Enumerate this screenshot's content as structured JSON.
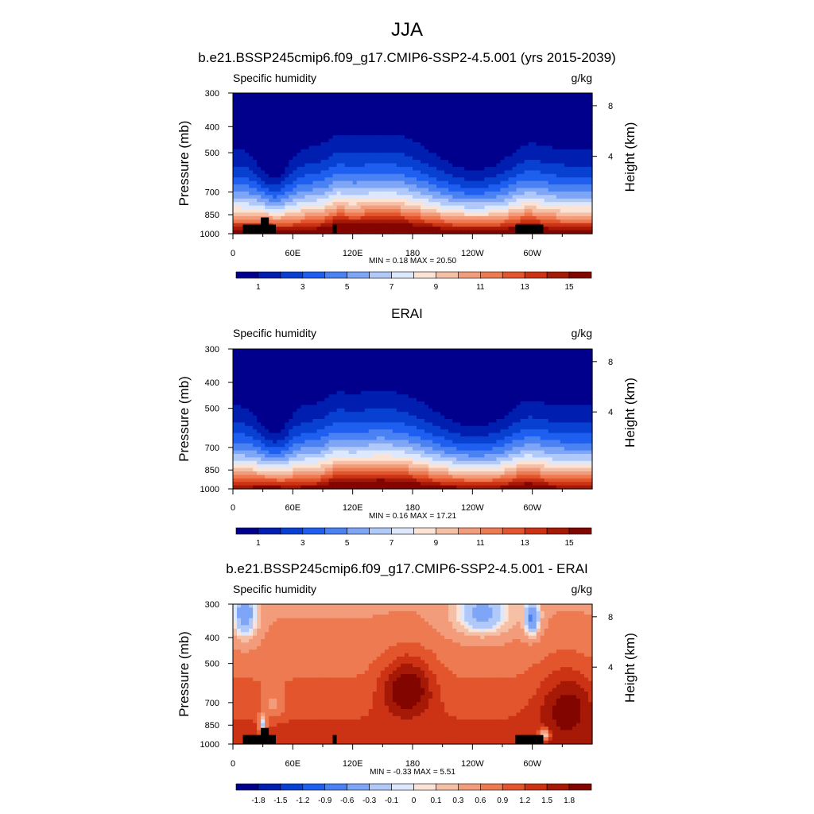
{
  "figure": {
    "season": "JJA"
  },
  "palettes": {
    "full": [
      "#00008c",
      "#001eaf",
      "#0841d2",
      "#1f5ff0",
      "#4a82f3",
      "#7ea5f6",
      "#b1c9f9",
      "#dde8fc",
      "#fbe3d6",
      "#f6c0a6",
      "#f39c7b",
      "#ee7a52",
      "#e3552d",
      "#cc3314",
      "#a61907",
      "#830500"
    ],
    "diff": [
      "#00008c",
      "#001eaf",
      "#0841d2",
      "#1f5ff0",
      "#4a82f3",
      "#7ea5f6",
      "#b1c9f9",
      "#dde8fc",
      "#fbe3d6",
      "#f6c0a6",
      "#f39c7b",
      "#ee7a52",
      "#e3552d",
      "#cc3314",
      "#a61907",
      "#830500"
    ]
  },
  "chart_data": [
    {
      "type": "heatmap",
      "title": "b.e21.BSSP245cmip6.f09_g17.CMIP6-SSP2-4.5.001 (yrs 2015-2039)",
      "variable": "Specific humidity",
      "units": "g/kg",
      "ylabel": "Pressure (mb)",
      "y2label": "Height (km)",
      "y_ticks": [
        "300",
        "400",
        "500",
        "700",
        "850",
        "1000"
      ],
      "y_ticks_values": [
        300,
        400,
        500,
        700,
        850,
        1000
      ],
      "y2_ticks": [
        "8",
        "4"
      ],
      "y2_ticks_values": [
        8,
        4
      ],
      "x_ticks": [
        "0",
        "60E",
        "120E",
        "180",
        "120W",
        "60W"
      ],
      "x_ticks_values": [
        0,
        60,
        120,
        180,
        240,
        300
      ],
      "xlim": [
        0,
        360
      ],
      "ylim": [
        1000,
        300
      ],
      "stats": "MIN =   0.18  MAX =  20.50",
      "colorbar_labels": [
        "1",
        "3",
        "5",
        "7",
        "9",
        "11",
        "13",
        "15"
      ],
      "colorbar_levels": [
        1,
        2,
        3,
        4,
        5,
        6,
        7,
        8,
        9,
        10,
        11,
        12,
        13,
        14,
        15
      ],
      "orography": true
    },
    {
      "type": "heatmap",
      "title": "ERAI",
      "variable": "Specific humidity",
      "units": "g/kg",
      "ylabel": "Pressure (mb)",
      "y2label": "Height (km)",
      "y_ticks": [
        "300",
        "400",
        "500",
        "700",
        "850",
        "1000"
      ],
      "y_ticks_values": [
        300,
        400,
        500,
        700,
        850,
        1000
      ],
      "y2_ticks": [
        "8",
        "4"
      ],
      "y2_ticks_values": [
        8,
        4
      ],
      "x_ticks": [
        "0",
        "60E",
        "120E",
        "180",
        "120W",
        "60W"
      ],
      "x_ticks_values": [
        0,
        60,
        120,
        180,
        240,
        300
      ],
      "xlim": [
        0,
        360
      ],
      "ylim": [
        1000,
        300
      ],
      "stats": "MIN =   0.16  MAX =  17.21",
      "colorbar_labels": [
        "1",
        "3",
        "5",
        "7",
        "9",
        "11",
        "13",
        "15"
      ],
      "colorbar_levels": [
        1,
        2,
        3,
        4,
        5,
        6,
        7,
        8,
        9,
        10,
        11,
        12,
        13,
        14,
        15
      ],
      "orography": false
    },
    {
      "type": "heatmap",
      "title": "b.e21.BSSP245cmip6.f09_g17.CMIP6-SSP2-4.5.001 - ERAI",
      "variable": "Specific humidity",
      "units": "g/kg",
      "ylabel": "Pressure (mb)",
      "y2label": "Height (km)",
      "y_ticks": [
        "300",
        "400",
        "500",
        "700",
        "850",
        "1000"
      ],
      "y_ticks_values": [
        300,
        400,
        500,
        700,
        850,
        1000
      ],
      "y2_ticks": [
        "8",
        "4"
      ],
      "y2_ticks_values": [
        8,
        4
      ],
      "x_ticks": [
        "0",
        "60E",
        "120E",
        "180",
        "120W",
        "60W"
      ],
      "x_ticks_values": [
        0,
        60,
        120,
        180,
        240,
        300
      ],
      "xlim": [
        0,
        360
      ],
      "ylim": [
        1000,
        300
      ],
      "stats": "MIN =  -0.33  MAX =   5.51",
      "colorbar_labels": [
        "-1.8",
        "-1.5",
        "-1.2",
        "-0.9",
        "-0.6",
        "-0.3",
        "-0.1",
        "0",
        "0.1",
        "0.3",
        "0.6",
        "0.9",
        "1.2",
        "1.5",
        "1.8"
      ],
      "colorbar_levels": [
        -1.8,
        -1.5,
        -1.2,
        -0.9,
        -0.6,
        -0.3,
        -0.1,
        0,
        0.1,
        0.3,
        0.6,
        0.9,
        1.2,
        1.5,
        1.8
      ],
      "orography": true
    }
  ]
}
